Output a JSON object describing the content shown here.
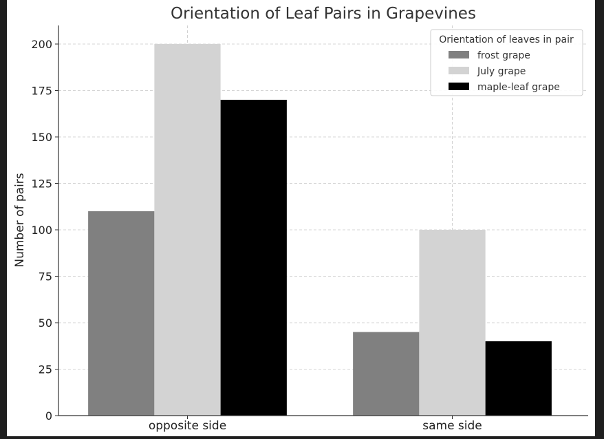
{
  "chart_data": {
    "type": "bar",
    "title": "Orientation of Leaf Pairs in Grapevines",
    "xlabel": "",
    "ylabel": "Number of pairs",
    "categories": [
      "opposite side",
      "same side"
    ],
    "series": [
      {
        "name": "frost grape",
        "values": [
          110,
          45
        ],
        "color": "#808080"
      },
      {
        "name": "July grape",
        "values": [
          200,
          100
        ],
        "color": "#d3d3d3"
      },
      {
        "name": "maple-leaf grape",
        "values": [
          170,
          40
        ],
        "color": "#000000"
      }
    ],
    "ylim": [
      0,
      210
    ],
    "yticks": [
      0,
      25,
      50,
      75,
      100,
      125,
      150,
      175,
      200
    ],
    "grid": true,
    "legend": {
      "title": "Orientation of leaves in pair",
      "placement": "top-right"
    }
  }
}
